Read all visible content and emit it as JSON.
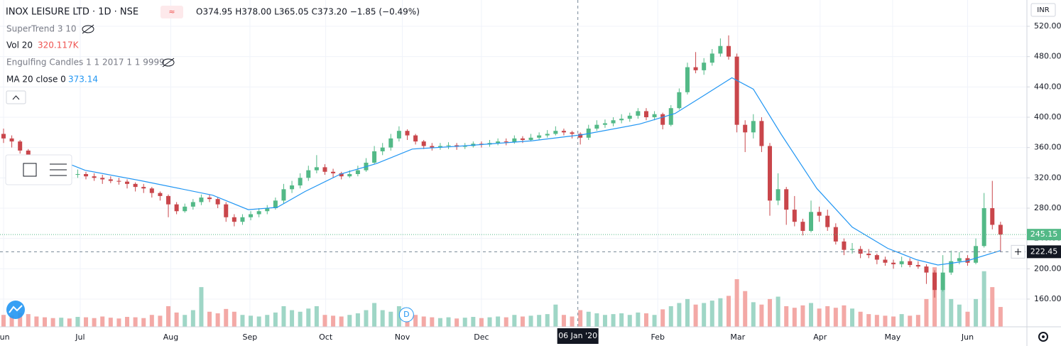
{
  "chart_data": {
    "type": "candlestick",
    "title": "INOX LEISURE LTD · 1D · NSE",
    "ohlc_header": "O374.95 H378.00 L365.05 C373.20 −1.85 (−0.49%)",
    "indicators": {
      "supertrend": "SuperTrend 3 10",
      "vol": "Vol 20",
      "vol_value": "320.117K",
      "engulfing": "Engulfing Candles 1 1 2017 1 1 9999",
      "ma": "MA 20 close 0",
      "ma_value": "373.14"
    },
    "currency": "INR",
    "badge": "D",
    "up_color": "#53b987",
    "down_color": "#c9464b",
    "volume_up_color": "#9fd6c6",
    "volume_down_color": "#f3a9a6",
    "ma_color": "#2196f3",
    "xlim": [
      -0.43,
      124.2
    ],
    "xticks": [
      {
        "value": 0,
        "label": "Jun"
      },
      {
        "value": 9.3,
        "label": "Jul"
      },
      {
        "value": 20.3,
        "label": "Aug"
      },
      {
        "value": 29.9,
        "label": "Sep"
      },
      {
        "value": 39.1,
        "label": "Oct"
      },
      {
        "value": 48.4,
        "label": "Nov"
      },
      {
        "value": 58,
        "label": "Dec"
      },
      {
        "value": 79.4,
        "label": "Feb"
      },
      {
        "value": 89.1,
        "label": "Mar"
      },
      {
        "value": 99.1,
        "label": "Apr"
      },
      {
        "value": 107.9,
        "label": "May"
      },
      {
        "value": 117,
        "label": "Jun"
      }
    ],
    "ylim": [
      123.4,
      554.7
    ],
    "yticks": [
      {
        "value": 160,
        "label": "160.00"
      },
      {
        "value": 200,
        "label": "200.00"
      },
      {
        "value": 240,
        "label": "240.00"
      },
      {
        "value": 280,
        "label": "280.00"
      },
      {
        "value": 320,
        "label": "320.00"
      },
      {
        "value": 360,
        "label": "360.00"
      },
      {
        "value": 400,
        "label": "400.00"
      },
      {
        "value": 440,
        "label": "440.00"
      },
      {
        "value": 480,
        "label": "480.00"
      },
      {
        "value": 520,
        "label": "520.00"
      }
    ],
    "grid": true,
    "last_price": 245.15,
    "crosshair": {
      "x": 69.7,
      "x_label": "06 Jan '20",
      "price": 222.45
    },
    "volume_ylim": [
      0,
      1700
    ],
    "candles": [
      [
        378,
        385,
        366,
        372
      ],
      [
        372,
        376,
        360,
        368
      ],
      [
        368,
        370,
        352,
        356
      ],
      [
        356,
        358,
        334,
        338
      ],
      [
        338,
        342,
        326,
        330
      ],
      [
        330,
        334,
        324,
        328
      ],
      [
        328,
        332,
        322,
        326
      ],
      [
        326,
        332,
        322,
        327
      ],
      [
        327,
        330,
        318,
        324
      ],
      [
        324,
        331,
        320,
        325
      ],
      [
        325,
        328,
        318,
        322
      ],
      [
        322,
        326,
        316,
        320
      ],
      [
        320,
        324,
        312,
        318
      ],
      [
        318,
        322,
        313,
        316
      ],
      [
        316,
        320,
        311,
        315
      ],
      [
        315,
        318,
        306,
        312
      ],
      [
        312,
        314,
        302,
        308
      ],
      [
        308,
        312,
        300,
        306
      ],
      [
        306,
        308,
        294,
        300
      ],
      [
        300,
        302,
        290,
        296
      ],
      [
        296,
        298,
        268,
        285
      ],
      [
        285,
        288,
        272,
        276
      ],
      [
        276,
        286,
        274,
        282
      ],
      [
        282,
        292,
        278,
        288
      ],
      [
        288,
        298,
        284,
        294
      ],
      [
        294,
        298,
        288,
        292
      ],
      [
        292,
        294,
        280,
        285
      ],
      [
        285,
        288,
        262,
        268
      ],
      [
        268,
        272,
        256,
        262
      ],
      [
        262,
        272,
        258,
        268
      ],
      [
        268,
        276,
        264,
        272
      ],
      [
        272,
        280,
        268,
        276
      ],
      [
        276,
        284,
        272,
        280
      ],
      [
        280,
        294,
        278,
        290
      ],
      [
        290,
        312,
        286,
        305
      ],
      [
        305,
        316,
        300,
        310
      ],
      [
        310,
        326,
        306,
        320
      ],
      [
        320,
        336,
        316,
        330
      ],
      [
        330,
        350,
        326,
        334
      ],
      [
        334,
        338,
        324,
        328
      ],
      [
        328,
        332,
        320,
        326
      ],
      [
        326,
        328,
        318,
        322
      ],
      [
        322,
        330,
        320,
        325
      ],
      [
        325,
        336,
        322,
        330
      ],
      [
        330,
        346,
        328,
        340
      ],
      [
        340,
        362,
        338,
        355
      ],
      [
        355,
        366,
        350,
        360
      ],
      [
        360,
        378,
        356,
        372
      ],
      [
        372,
        388,
        368,
        382
      ],
      [
        382,
        384,
        370,
        376
      ],
      [
        376,
        378,
        364,
        368
      ],
      [
        368,
        370,
        358,
        362
      ],
      [
        362,
        366,
        356,
        360
      ],
      [
        360,
        366,
        357,
        362
      ],
      [
        362,
        367,
        358,
        363
      ],
      [
        363,
        366,
        357,
        361
      ],
      [
        361,
        366,
        358,
        362
      ],
      [
        362,
        368,
        360,
        365
      ],
      [
        365,
        368,
        360,
        364
      ],
      [
        364,
        370,
        361,
        366
      ],
      [
        366,
        372,
        363,
        368
      ],
      [
        368,
        372,
        363,
        367
      ],
      [
        367,
        376,
        365,
        372
      ],
      [
        372,
        375,
        366,
        370
      ],
      [
        370,
        378,
        368,
        373
      ],
      [
        373,
        380,
        370,
        376
      ],
      [
        376,
        383,
        373,
        378
      ],
      [
        378,
        388,
        376,
        382
      ],
      [
        382,
        385,
        376,
        380
      ],
      [
        380,
        382,
        372,
        378
      ],
      [
        378,
        380,
        364,
        373
      ],
      [
        373,
        390,
        370,
        385
      ],
      [
        385,
        396,
        382,
        390
      ],
      [
        390,
        397,
        386,
        392
      ],
      [
        392,
        400,
        388,
        396
      ],
      [
        396,
        404,
        392,
        398
      ],
      [
        398,
        406,
        394,
        402
      ],
      [
        402,
        412,
        398,
        408
      ],
      [
        408,
        412,
        396,
        400
      ],
      [
        400,
        408,
        396,
        404
      ],
      [
        404,
        406,
        384,
        390
      ],
      [
        390,
        416,
        388,
        412
      ],
      [
        412,
        438,
        410,
        433
      ],
      [
        433,
        472,
        430,
        466
      ],
      [
        466,
        486,
        458,
        462
      ],
      [
        462,
        478,
        456,
        472
      ],
      [
        472,
        490,
        468,
        484
      ],
      [
        484,
        504,
        480,
        494
      ],
      [
        494,
        508,
        476,
        480
      ],
      [
        480,
        484,
        380,
        390
      ],
      [
        390,
        396,
        354,
        380
      ],
      [
        380,
        404,
        372,
        395
      ],
      [
        395,
        400,
        354,
        362
      ],
      [
        362,
        366,
        270,
        290
      ],
      [
        290,
        326,
        284,
        305
      ],
      [
        305,
        308,
        258,
        278
      ],
      [
        278,
        296,
        256,
        262
      ],
      [
        262,
        266,
        244,
        250
      ],
      [
        250,
        290,
        248,
        275
      ],
      [
        275,
        282,
        262,
        270
      ],
      [
        270,
        278,
        250,
        255
      ],
      [
        255,
        260,
        232,
        236
      ],
      [
        236,
        240,
        218,
        225
      ],
      [
        225,
        234,
        220,
        226
      ],
      [
        226,
        230,
        214,
        220
      ],
      [
        220,
        226,
        214,
        218
      ],
      [
        218,
        220,
        206,
        212
      ],
      [
        212,
        216,
        204,
        208
      ],
      [
        208,
        212,
        200,
        206
      ],
      [
        206,
        216,
        202,
        210
      ],
      [
        210,
        214,
        202,
        205
      ],
      [
        205,
        210,
        200,
        203
      ],
      [
        203,
        206,
        180,
        195
      ],
      [
        195,
        198,
        162,
        172
      ],
      [
        172,
        218,
        170,
        195
      ],
      [
        195,
        224,
        192,
        210
      ],
      [
        210,
        222,
        206,
        214
      ],
      [
        214,
        218,
        204,
        208
      ],
      [
        208,
        240,
        206,
        230
      ],
      [
        230,
        300,
        228,
        280
      ],
      [
        280,
        316,
        252,
        258
      ],
      [
        258,
        262,
        222,
        245.15
      ]
    ],
    "volume": [
      300,
      280,
      350,
      320,
      260,
      240,
      220,
      230,
      210,
      250,
      240,
      220,
      260,
      230,
      210,
      250,
      240,
      220,
      300,
      280,
      520,
      360,
      300,
      420,
      1000,
      380,
      340,
      450,
      380,
      300,
      280,
      260,
      300,
      360,
      520,
      420,
      380,
      460,
      520,
      300,
      280,
      260,
      300,
      340,
      420,
      600,
      420,
      380,
      520,
      360,
      300,
      260,
      240,
      220,
      240,
      210,
      230,
      250,
      220,
      240,
      260,
      240,
      300,
      260,
      280,
      300,
      320,
      560,
      300,
      260,
      420,
      380,
      340,
      300,
      320,
      340,
      300,
      360,
      340,
      300,
      440,
      520,
      600,
      700,
      560,
      600,
      660,
      720,
      780,
      1200,
      900,
      620,
      560,
      700,
      760,
      520,
      480,
      540,
      600,
      460,
      520,
      480,
      540,
      460,
      380,
      320,
      300,
      280,
      260,
      320,
      280,
      300,
      700,
      1500,
      1300,
      700,
      560,
      380,
      700,
      1400,
      1000,
      500
    ],
    "ma": {
      "x": [
        7.8,
        9.9,
        16.8,
        25.4,
        29.7,
        33.2,
        36.6,
        40.9,
        45.3,
        49.6,
        55.6,
        64.2,
        70.3,
        77.2,
        81.5,
        84.9,
        88.4,
        91,
        94.4,
        98.7,
        103,
        107.3,
        110.8,
        113.4,
        116.8,
        121
      ],
      "values": [
        339,
        330,
        316,
        297,
        278,
        281,
        302,
        325,
        339,
        358,
        362,
        369,
        377,
        391,
        405,
        428,
        452,
        437,
        377,
        306,
        255,
        227,
        212,
        205,
        210,
        224
      ]
    }
  }
}
